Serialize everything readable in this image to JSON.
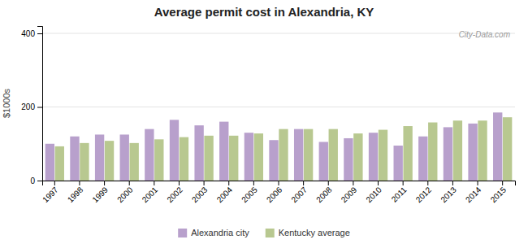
{
  "chart_data": {
    "type": "bar",
    "title": "Average permit cost in Alexandria, KY",
    "ylabel": "$1000s",
    "categories": [
      "1997",
      "1998",
      "1999",
      "2000",
      "2001",
      "2002",
      "2003",
      "2004",
      "2005",
      "2006",
      "2007",
      "2008",
      "2009",
      "2010",
      "2011",
      "2012",
      "2013",
      "2014",
      "2015"
    ],
    "series": [
      {
        "name": "Alexandria city",
        "color": "#b8a0cc",
        "values": [
          100,
          120,
          125,
          125,
          140,
          165,
          150,
          160,
          130,
          110,
          140,
          105,
          115,
          130,
          95,
          120,
          145,
          155,
          185
        ]
      },
      {
        "name": "Kentucky average",
        "color": "#b8c890",
        "values": [
          93,
          102,
          108,
          102,
          112,
          118,
          122,
          122,
          128,
          140,
          140,
          140,
          128,
          138,
          148,
          158,
          163,
          163,
          172
        ]
      }
    ],
    "ylim": [
      0,
      420
    ],
    "yticks": [
      0,
      200,
      400
    ],
    "grid": true,
    "legend": "bottom",
    "annotations": [
      "City-Data.com"
    ]
  }
}
